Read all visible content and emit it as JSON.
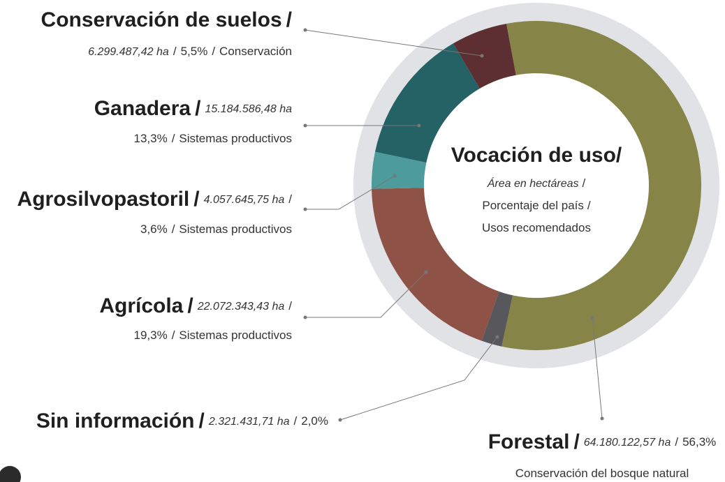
{
  "chart_data": {
    "type": "pie",
    "title": "Vocación de uso/",
    "subtitle": [
      "Área en hectáreas",
      "Porcentaje del país",
      "Usos recomendados"
    ],
    "separator": "/",
    "categories": [
      "Forestal",
      "Sin información",
      "Agrícola",
      "Agrosilvopastoril",
      "Ganadera",
      "Conservación de suelos"
    ],
    "values": [
      56.3,
      2.0,
      19.3,
      3.6,
      13.3,
      5.5
    ],
    "value_labels": [
      "56,3%",
      "2,0%",
      "19,3%",
      "3,6%",
      "13,3%",
      "5,5%"
    ],
    "areas": [
      "64.180.122,57 ha",
      "2.321.431,71 ha",
      "22.072.343,43 ha",
      "4.057.645,75 ha",
      "15.184.586,48 ha",
      "6.299.487,42 ha"
    ],
    "uses": [
      "Conservación del bosque natural",
      null,
      "Sistemas productivos",
      "Sistemas productivos",
      "Sistemas productivos",
      "Conservación"
    ],
    "colors": [
      "#878447",
      "#58575b",
      "#8e5346",
      "#4d9b9b",
      "#246265",
      "#5e2f32"
    ]
  }
}
